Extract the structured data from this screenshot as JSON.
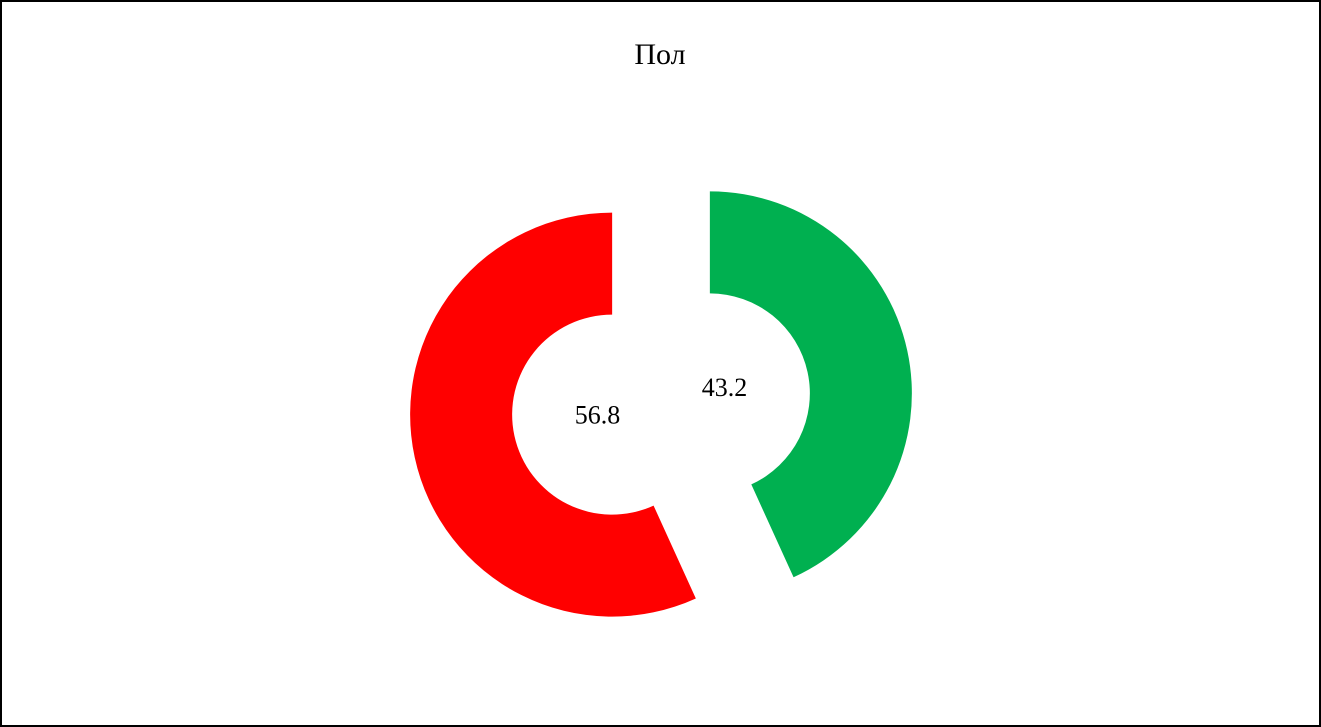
{
  "chart_data": {
    "type": "donut",
    "title": "Пол",
    "values": [
      43.2,
      56.8
    ],
    "colors": [
      "#00b050",
      "#ff0000"
    ],
    "exploded": true
  }
}
